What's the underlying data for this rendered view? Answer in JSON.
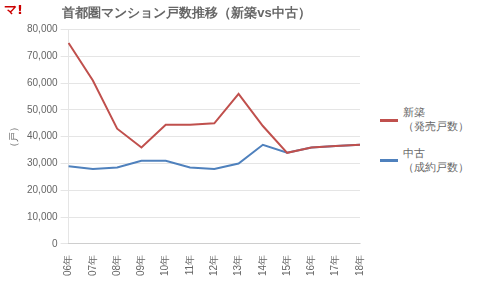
{
  "chart_data": {
    "type": "line",
    "title": "首都圏マンション戸数推移（新築vs中古）",
    "ylabel": "（戸）",
    "categories": [
      "06年",
      "07年",
      "08年",
      "09年",
      "10年",
      "11年",
      "12年",
      "13年",
      "14年",
      "15年",
      "16年",
      "17年",
      "18年"
    ],
    "series": [
      {
        "name": "新築\n（発売戸数）",
        "color": "#c0504d",
        "values": [
          75000,
          61000,
          43000,
          36000,
          44500,
          44500,
          45000,
          56000,
          44000,
          34000,
          36000,
          36500,
          37000
        ]
      },
      {
        "name": "中古\n（成約戸数）",
        "color": "#4f81bd",
        "values": [
          29000,
          28000,
          28500,
          31000,
          31000,
          28500,
          28000,
          30000,
          37000,
          34000,
          36000,
          36500,
          37000
        ]
      }
    ],
    "ylim": [
      0,
      80000
    ],
    "yticks": [
      0,
      {
        "value": 10000,
        "label": "10,000"
      },
      {
        "value": 20000,
        "label": "20,000"
      },
      {
        "value": 30000,
        "label": "30,000"
      },
      {
        "value": 40000,
        "label": "40,000"
      },
      {
        "value": 50000,
        "label": "50,000"
      },
      {
        "value": 60000,
        "label": "60,000"
      },
      {
        "value": 70000,
        "label": "70,000"
      },
      {
        "value": 80000,
        "label": "80,000"
      }
    ],
    "grid": true,
    "legend": "right",
    "annotations": [
      {
        "text": "マ!",
        "color": "#cc0000"
      }
    ]
  }
}
